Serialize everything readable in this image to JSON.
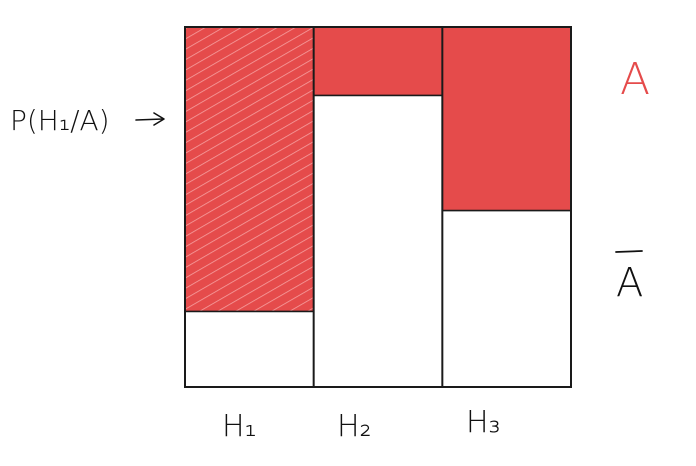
{
  "labels": {
    "pointer_label": "P(H₁/A)",
    "event_a": "A",
    "event_not_a": "A",
    "hypotheses": [
      "H₁",
      "H₂",
      "H₃"
    ]
  },
  "colors": {
    "event_fill": "#e54b4b",
    "hatch_stroke": "#f6a0a0",
    "frame_stroke": "#1a1a1a",
    "label_red": "#e54b4b"
  },
  "model": {
    "prior_widths": [
      1,
      1,
      1
    ],
    "p_a_given_h": [
      0.79,
      0.19,
      0.51
    ],
    "highlighted_column": 0
  }
}
